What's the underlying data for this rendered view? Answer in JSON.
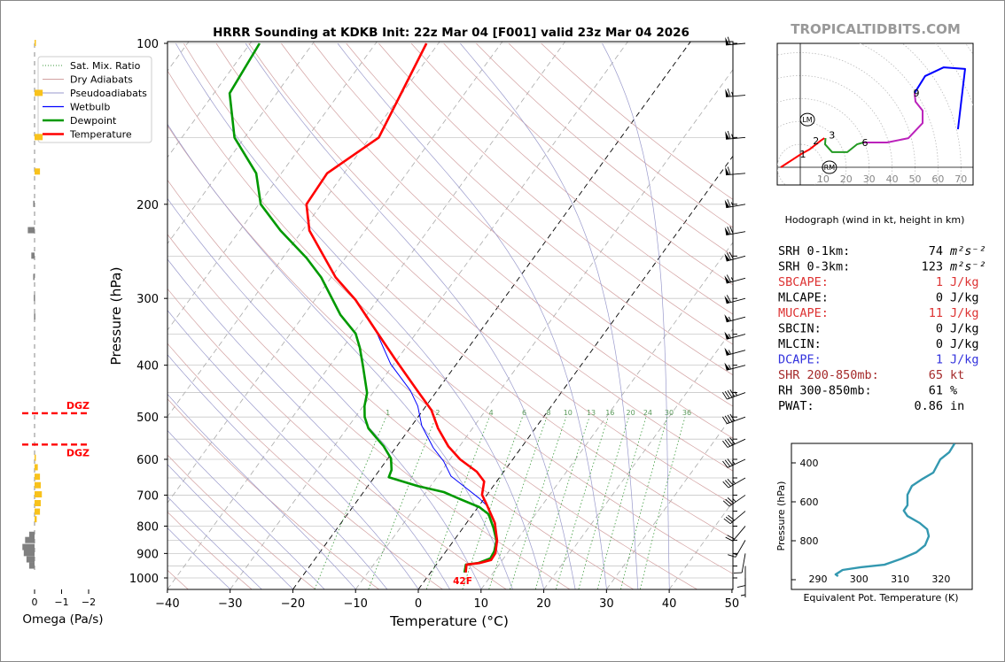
{
  "title": "HRRR Sounding at KDKB Init: 22z Mar 04 [F001] valid 23z Mar 04 2026",
  "brand": "TROPICALTIDBITS.COM",
  "colors": {
    "temperature": "#ff0000",
    "dewpoint": "#009900",
    "wetbulb": "#0000ff",
    "dry": "#d2a0a0",
    "moist": "#9a9acc",
    "mix": "#3c9a3c",
    "omega_up": "#f8c21c",
    "omega_down": "#808080",
    "thetae": "#3398b0",
    "red_stat": "#dd3333",
    "blue_stat": "#3333dd",
    "brown_stat": "#a52a2a"
  },
  "legend": [
    {
      "label": "Sat. Mix. Ratio",
      "key": "mix"
    },
    {
      "label": "Dry Adiabats",
      "key": "dry"
    },
    {
      "label": "Pseudoadiabats",
      "key": "moist"
    },
    {
      "label": "Wetbulb",
      "key": "wetbulb"
    },
    {
      "label": "Dewpoint",
      "key": "dewpoint"
    },
    {
      "label": "Temperature",
      "key": "temperature"
    }
  ],
  "surface_label": "42F",
  "dgz_label": "DGZ",
  "stats": [
    {
      "label": "SRH 0-1km:",
      "value": "74",
      "unit": "m²s⁻²",
      "color": "#000000"
    },
    {
      "label": "SRH 0-3km:",
      "value": "123",
      "unit": "m²s⁻²",
      "color": "#000000"
    },
    {
      "label": "SBCAPE:",
      "value": "1",
      "unit": "J/kg",
      "color": "#dd3333"
    },
    {
      "label": "MLCAPE:",
      "value": "0",
      "unit": "J/kg",
      "color": "#000000"
    },
    {
      "label": "MUCAPE:",
      "value": "11",
      "unit": "J/kg",
      "color": "#dd3333"
    },
    {
      "label": "SBCIN:",
      "value": "0",
      "unit": "J/kg",
      "color": "#000000"
    },
    {
      "label": "MLCIN:",
      "value": "0",
      "unit": "J/kg",
      "color": "#000000"
    },
    {
      "label": "DCAPE:",
      "value": "1",
      "unit": "J/kg",
      "color": "#3333dd"
    },
    {
      "label": "SHR 200-850mb:",
      "value": "65",
      "unit": "kt",
      "color": "#a52a2a"
    },
    {
      "label": "RH 300-850mb:",
      "value": "61",
      "unit": "%",
      "color": "#000000"
    },
    {
      "label": "PWAT:",
      "value": "0.86",
      "unit": "in",
      "color": "#000000"
    }
  ],
  "chart_data": [
    {
      "type": "line",
      "name": "skew-t",
      "title": "HRRR Sounding at KDKB Init: 22z Mar 04 [F001] valid 23z Mar 04 2026",
      "xlabel": "Temperature (°C)",
      "ylabel": "Pressure (hPa)",
      "xlim": [
        -40,
        50
      ],
      "ylim": [
        1050,
        100
      ],
      "xticks": [
        -40,
        -30,
        -20,
        -10,
        0,
        10,
        20,
        30,
        40,
        50
      ],
      "yticks": [
        100,
        200,
        300,
        400,
        500,
        600,
        700,
        800,
        900,
        1000
      ],
      "mixing_ratio_labels": [
        "1",
        "2",
        "4",
        "6",
        "8",
        "10",
        "13",
        "16",
        "20",
        "24",
        "30",
        "36"
      ],
      "series": [
        {
          "name": "Temperature",
          "p": [
            100,
            150,
            175,
            200,
            224,
            274,
            302,
            348,
            390,
            446,
            485,
            525,
            567,
            600,
            633,
            660,
            699,
            726,
            789,
            851,
            899,
            926,
            938,
            944,
            977
          ],
          "T": [
            -61.9,
            -58.6,
            -62.7,
            -62.4,
            -58.9,
            -49.3,
            -43.5,
            -36.2,
            -30.3,
            -23.2,
            -18.7,
            -15.5,
            -11.8,
            -8.4,
            -4.3,
            -2.0,
            -0.8,
            0.9,
            4.5,
            6.9,
            8.1,
            8.2,
            6.7,
            4.8,
            5.6
          ]
        },
        {
          "name": "Dewpoint",
          "p": [
            100,
            124,
            150,
            175,
            200,
            224,
            252,
            274,
            322,
            349,
            371,
            400,
            451,
            477,
            500,
            525,
            550,
            567,
            598,
            628,
            648,
            673,
            691,
            712,
            737,
            760,
            805,
            851,
            892,
            919,
            938,
            944,
            977
          ],
          "T": [
            -88.5,
            -87.5,
            -81.6,
            -74,
            -69.7,
            -63.5,
            -56.2,
            -51.6,
            -44.2,
            -39.6,
            -37.3,
            -34.8,
            -30.9,
            -29.8,
            -28.5,
            -26.6,
            -23.9,
            -22.1,
            -19.5,
            -18.1,
            -17.7,
            -12.1,
            -7.2,
            -3.8,
            0.2,
            2.5,
            4.8,
            6.8,
            7.7,
            7.9,
            6.5,
            4.7,
            5.4
          ]
        },
        {
          "name": "Wetbulb",
          "p": [
            302,
            348,
            398,
            446,
            477,
            519,
            571,
            605,
            645,
            678,
            710,
            731,
            789,
            851,
            899,
            926,
            938,
            944,
            977
          ],
          "T": [
            -43.6,
            -36.3,
            -30.5,
            -24.3,
            -21.3,
            -18.4,
            -14.0,
            -10.8,
            -7.9,
            -4.2,
            -0.8,
            1.1,
            4.6,
            6.8,
            7.9,
            8.0,
            6.6,
            4.7,
            5.5
          ]
        }
      ],
      "wind_barbs": {
        "p": [
          100,
          125,
          150,
          175,
          200,
          225,
          250,
          275,
          300,
          325,
          350,
          375,
          400,
          450,
          500,
          550,
          600,
          650,
          700,
          750,
          800,
          850,
          900,
          950,
          1000
        ],
        "speed_kt": [
          60,
          65,
          65,
          60,
          65,
          70,
          70,
          65,
          60,
          55,
          55,
          55,
          55,
          45,
          40,
          40,
          35,
          35,
          35,
          30,
          20,
          15,
          10,
          10,
          5
        ],
        "direction_deg": [
          265,
          265,
          265,
          265,
          260,
          260,
          255,
          255,
          255,
          255,
          255,
          255,
          255,
          250,
          250,
          245,
          245,
          240,
          235,
          230,
          220,
          210,
          190,
          180,
          180
        ]
      }
    },
    {
      "type": "line",
      "name": "hodograph",
      "xlabel": "Hodograph (wind in kt, height in km)",
      "ring_labels": [
        "10",
        "20",
        "30",
        "40",
        "50",
        "60",
        "70"
      ],
      "height_labels": [
        "1",
        "2",
        "3",
        "6",
        "9"
      ],
      "markers": [
        "LM",
        "RM"
      ],
      "marker_uv": [
        [
          3.1,
          20.8
        ],
        [
          12.7,
          -3.1
        ]
      ],
      "segments": [
        {
          "layer": "0-3 km",
          "color": "#ff0000",
          "u": [
            -8.5,
            0.4,
            3.9,
            8.9,
            10.5
          ],
          "v": [
            0,
            5.8,
            7.7,
            11.6,
            12.7
          ]
        },
        {
          "layer": "3-6 km",
          "color": "#229922",
          "u": [
            11.0,
            10.8,
            13.9,
            20.5,
            24.7,
            27.4
          ],
          "v": [
            12.7,
            10,
            6.6,
            6.6,
            10,
            10.8
          ]
        },
        {
          "layer": "6-9 km",
          "color": "#bb22bb",
          "u": [
            27.4,
            37.8,
            47.1,
            53.3,
            53.3,
            50.2,
            49.8
          ],
          "v": [
            10.8,
            10.8,
            12.7,
            19.3,
            24.7,
            28.6,
            32.4
          ]
        },
        {
          "layer": "9+ km",
          "color": "#0000ff",
          "u": [
            49.8,
            54.4,
            62.5,
            71.8,
            68.7
          ],
          "v": [
            32.4,
            39.8,
            43.6,
            42.9,
            16.6
          ]
        }
      ],
      "height_points_uv": [
        [
          0.4,
          5.8
        ],
        [
          8.0,
          11.5
        ],
        [
          11.5,
          12.9
        ],
        [
          27.4,
          10.8
        ],
        [
          49.8,
          32.4
        ]
      ]
    },
    {
      "type": "line",
      "name": "equivalent-potential-temperature",
      "xlabel": "Equivalent Pot. Temperature (K)",
      "ylabel": "Pressure (hPa)",
      "xticks": [
        290,
        300,
        310,
        320
      ],
      "yticks": [
        400,
        600,
        800
      ],
      "xlim": [
        288,
        332
      ],
      "ylim": [
        1050,
        300
      ],
      "p": [
        300,
        345,
        382,
        450,
        482,
        518,
        564,
        618,
        645,
        673,
        709,
        741,
        777,
        823,
        859,
        891,
        923,
        936,
        950,
        973,
        982
      ],
      "theta_e": [
        323.3,
        322.0,
        319.8,
        318.1,
        315.5,
        312.9,
        311.8,
        311.8,
        310.9,
        311.8,
        314.8,
        316.6,
        317.0,
        316.1,
        314.0,
        310.5,
        306.2,
        300.4,
        296.0,
        294.3,
        294.9
      ]
    },
    {
      "type": "bar",
      "name": "omega",
      "xlabel": "Omega (Pa/s)",
      "xticks": [
        "0",
        "−1",
        "−2"
      ],
      "xlim": [
        0.8,
        -2.2
      ],
      "dgz_bounds_hpa": [
        492,
        563
      ],
      "p": [
        100,
        124,
        150,
        174,
        200,
        224,
        250,
        274,
        300,
        325,
        597,
        622,
        648,
        672,
        699,
        726,
        753,
        778,
        832,
        851,
        877,
        900,
        925,
        950
      ],
      "omega": [
        -0.05,
        -0.3,
        -0.3,
        -0.2,
        0.05,
        0.25,
        0.12,
        0.05,
        0.03,
        0.02,
        -0.03,
        -0.12,
        -0.2,
        -0.23,
        -0.27,
        -0.23,
        -0.2,
        -0.08,
        0.2,
        0.35,
        0.45,
        0.4,
        0.3,
        0.2
      ]
    }
  ]
}
